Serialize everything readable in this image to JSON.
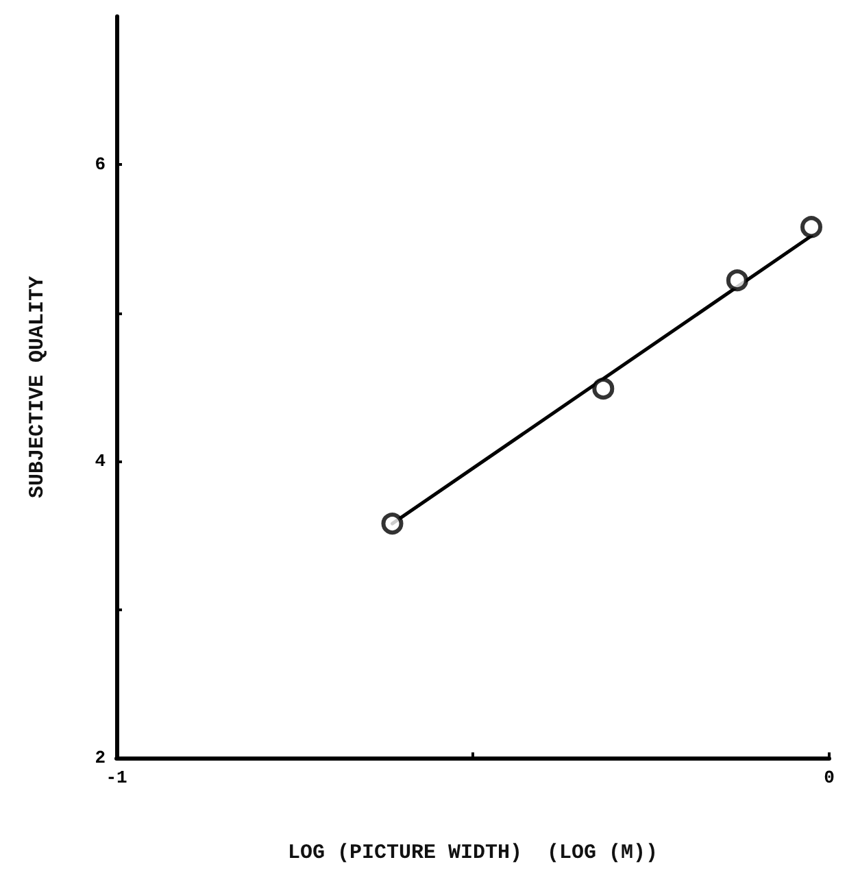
{
  "chart_data": {
    "type": "scatter",
    "xlabel": "LOG (PICTURE WIDTH)  (LOG (M))",
    "ylabel": "SUBJECTIVE QUALITY",
    "xlim": [
      -1,
      0
    ],
    "xticks": [
      -1,
      {
        "value": -0.5,
        "label": null
      },
      0
    ],
    "ylim": [
      2,
      7
    ],
    "yticks": [
      2,
      {
        "value": 3,
        "label": null
      },
      4,
      {
        "value": 5,
        "label": null
      },
      6
    ],
    "grid": false,
    "series": [
      {
        "color": "#000000",
        "marker": "circle",
        "x": [
          -0.613,
          -0.317,
          -0.129,
          -0.025
        ],
        "values": [
          3.58,
          4.49,
          5.22,
          5.58
        ]
      },
      {
        "type": "line",
        "color": "#000000",
        "x": [
          -0.613,
          -0.025
        ],
        "values": [
          3.58,
          5.52
        ],
        "marker": "none",
        "line_style": "solid"
      }
    ]
  }
}
